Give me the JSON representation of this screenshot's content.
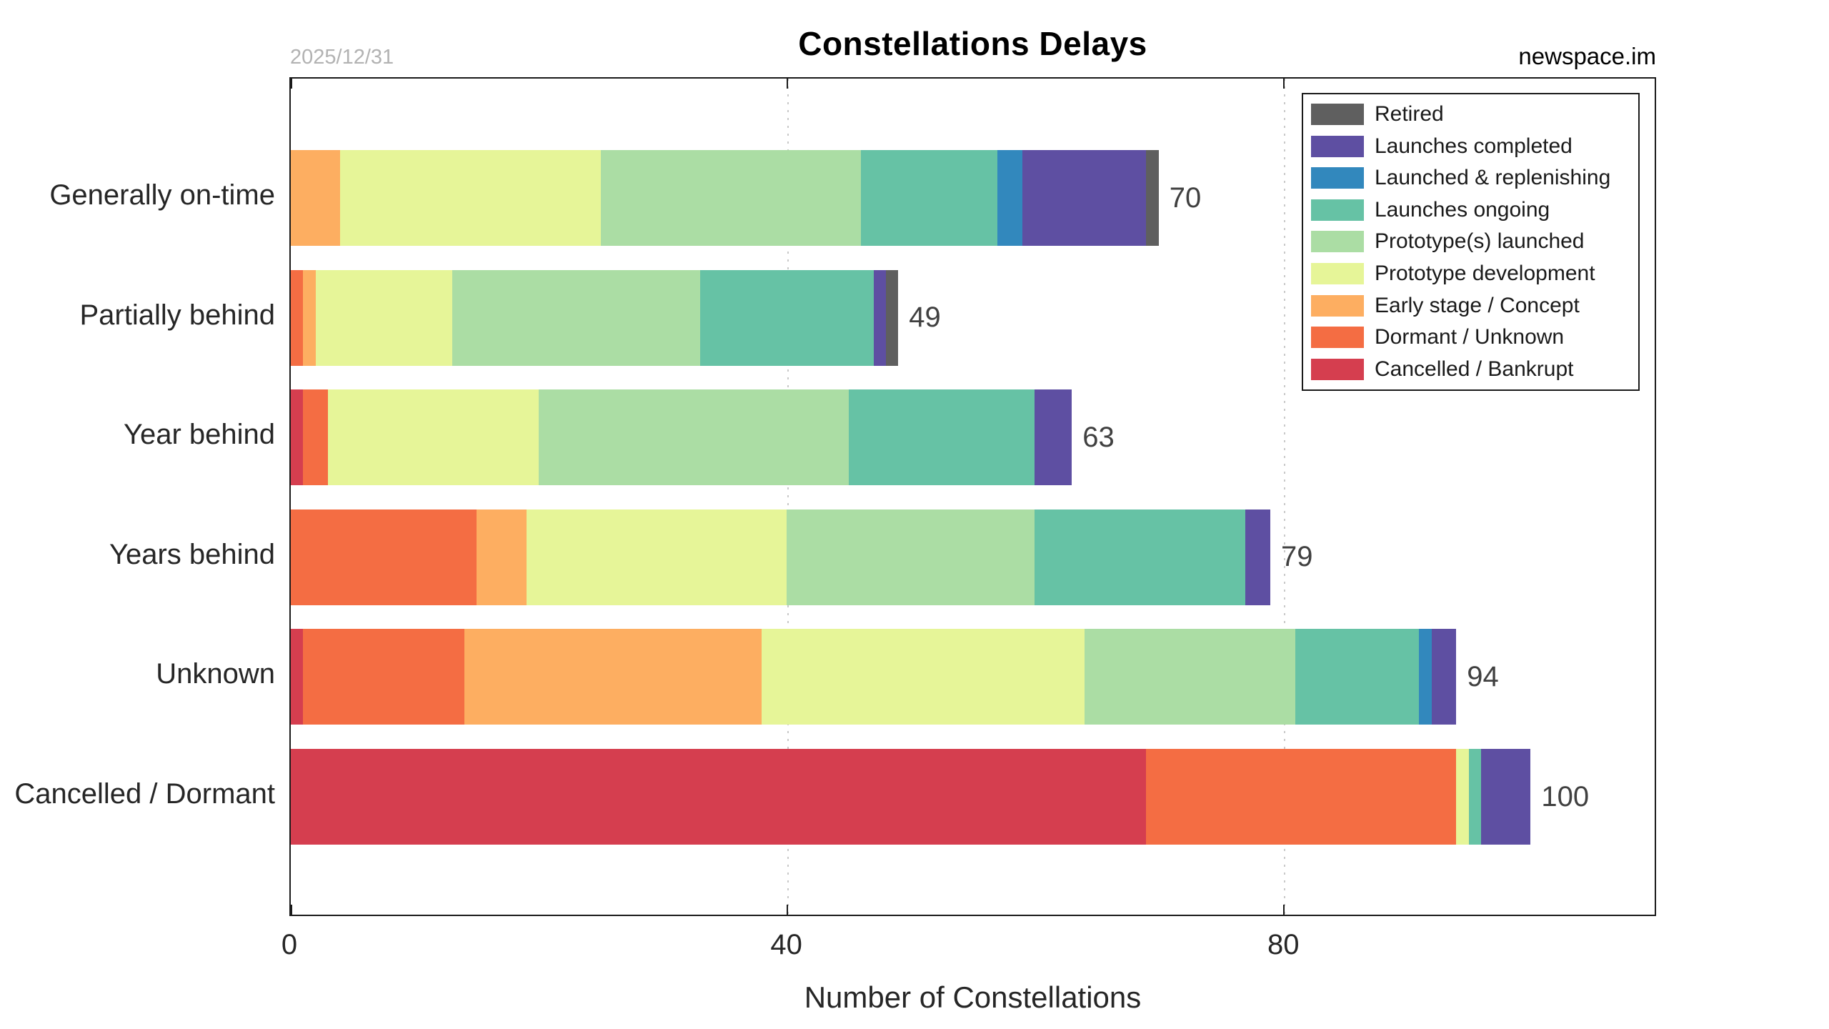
{
  "header": {
    "title": "Constellations Delays",
    "date_note": "2025/12/31",
    "source": "newspace.im"
  },
  "axis": {
    "xlabel": "Number of Constellations",
    "xticks": [
      0,
      40,
      80
    ],
    "xlim": [
      0,
      110
    ],
    "gridlines_at": [
      40,
      80
    ],
    "grid_style": "dotted"
  },
  "chart_data": {
    "type": "bar",
    "orientation": "horizontal-stacked",
    "title": "Constellations Delays",
    "xlabel": "Number of Constellations",
    "xlim": [
      0,
      110
    ],
    "legend_position": "top-right",
    "legend_order_top_to_bottom": [
      "Retired",
      "Launches completed",
      "Launched & replenishing",
      "Launches ongoing",
      "Prototype(s) launched",
      "Prototype development",
      "Early stage / Concept",
      "Dormant / Unknown",
      "Cancelled / Bankrupt"
    ],
    "categories": [
      "Generally on-time",
      "Partially behind",
      "Year behind",
      "Years behind",
      "Unknown",
      "Cancelled / Dormant"
    ],
    "totals": [
      70,
      49,
      63,
      79,
      94,
      100
    ],
    "series": [
      {
        "name": "Cancelled / Bankrupt",
        "color": "#d53e4f",
        "values": [
          0,
          0,
          1,
          0,
          1,
          69
        ]
      },
      {
        "name": "Dormant / Unknown",
        "color": "#f46d43",
        "values": [
          0,
          1,
          2,
          15,
          13,
          25
        ]
      },
      {
        "name": "Early stage / Concept",
        "color": "#fdae61",
        "values": [
          4,
          1,
          0,
          4,
          24,
          0
        ]
      },
      {
        "name": "Prototype development",
        "color": "#e6f598",
        "values": [
          21,
          11,
          17,
          21,
          26,
          1
        ]
      },
      {
        "name": "Prototype(s) launched",
        "color": "#abdda4",
        "values": [
          21,
          20,
          25,
          20,
          17,
          0
        ]
      },
      {
        "name": "Launches ongoing",
        "color": "#66c2a5",
        "values": [
          11,
          14,
          15,
          17,
          10,
          1
        ]
      },
      {
        "name": "Launched & replenishing",
        "color": "#3288bd",
        "values": [
          2,
          0,
          0,
          0,
          1,
          0
        ]
      },
      {
        "name": "Launches completed",
        "color": "#5e4fa2",
        "values": [
          10,
          1,
          3,
          2,
          2,
          4
        ]
      },
      {
        "name": "Retired",
        "color": "#5f5f5f",
        "values": [
          1,
          1,
          0,
          0,
          0,
          0
        ]
      }
    ]
  }
}
